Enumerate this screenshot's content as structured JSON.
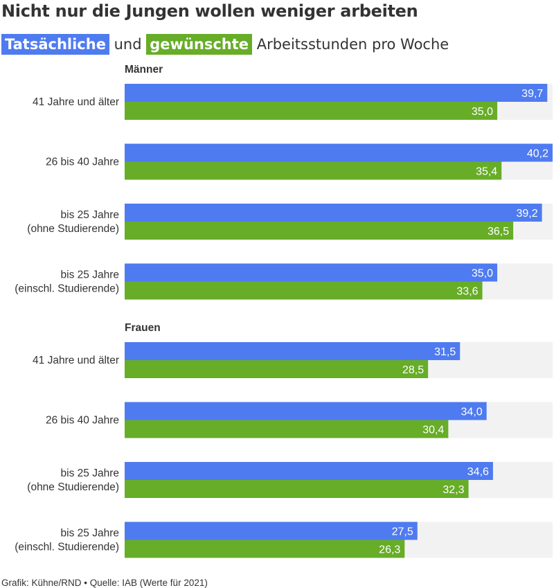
{
  "title": "Nicht nur die Jungen wollen weniger arbeiten",
  "subtitle": {
    "actual": "Tatsächliche",
    "joiner": "und",
    "desired": "gewünschte",
    "rest": "Arbeitsstunden pro Woche"
  },
  "footer": "Grafik: Kühne/RND • Quelle: IAB (Werte für 2021)",
  "colors": {
    "actual": "#4f7bf0",
    "desired": "#67ad28",
    "track": "#f2f2f2",
    "text": "#333333"
  },
  "chart_data": {
    "type": "bar",
    "orientation": "horizontal",
    "xlim": [
      0,
      40.2
    ],
    "series": [
      {
        "name": "Tatsächliche",
        "color": "#4f7bf0"
      },
      {
        "name": "gewünschte",
        "color": "#67ad28"
      }
    ],
    "groups": [
      {
        "label": "Männer",
        "categories": [
          {
            "label": [
              "41 Jahre und älter"
            ],
            "values": [
              39.7,
              35.0
            ],
            "display": [
              "39,7",
              "35,0"
            ]
          },
          {
            "label": [
              "26 bis 40 Jahre"
            ],
            "values": [
              40.2,
              35.4
            ],
            "display": [
              "40,2",
              "35,4"
            ]
          },
          {
            "label": [
              "bis 25 Jahre",
              "(ohne Studierende)"
            ],
            "values": [
              39.2,
              36.5
            ],
            "display": [
              "39,2",
              "36,5"
            ]
          },
          {
            "label": [
              "bis 25 Jahre",
              "(einschl. Studierende)"
            ],
            "values": [
              35.0,
              33.6
            ],
            "display": [
              "35,0",
              "33,6"
            ]
          }
        ]
      },
      {
        "label": "Frauen",
        "categories": [
          {
            "label": [
              "41 Jahre und älter"
            ],
            "values": [
              31.5,
              28.5
            ],
            "display": [
              "31,5",
              "28,5"
            ]
          },
          {
            "label": [
              "26 bis 40 Jahre"
            ],
            "values": [
              34.0,
              30.4
            ],
            "display": [
              "34,0",
              "30,4"
            ]
          },
          {
            "label": [
              "bis 25 Jahre",
              "(ohne Studierende)"
            ],
            "values": [
              34.6,
              32.3
            ],
            "display": [
              "34,6",
              "32,3"
            ]
          },
          {
            "label": [
              "bis 25 Jahre",
              "(einschl. Studierende)"
            ],
            "values": [
              27.5,
              26.3
            ],
            "display": [
              "27,5",
              "26,3"
            ]
          }
        ]
      }
    ]
  }
}
